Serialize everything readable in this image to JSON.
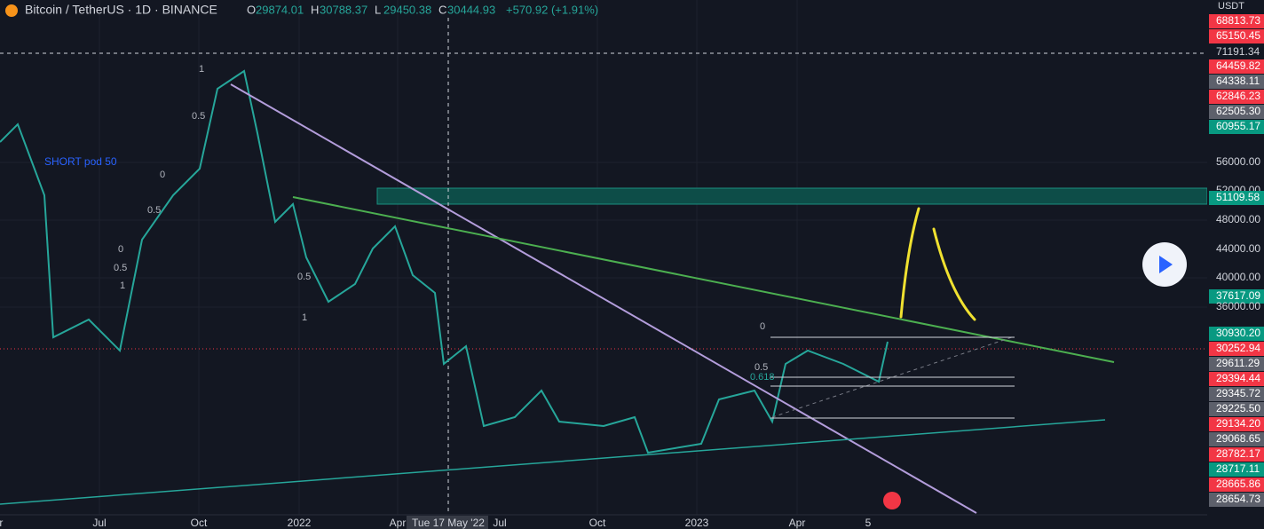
{
  "header": {
    "symbol": "Bitcoin / TetherUS · 1D · BINANCE",
    "ohlc": [
      {
        "key": "O",
        "value": "29874.01"
      },
      {
        "key": "H",
        "value": "30788.37"
      },
      {
        "key": "L",
        "value": "29450.38"
      },
      {
        "key": "C",
        "value": "30444.93"
      }
    ],
    "change": "+570.92 (+1.91%)"
  },
  "price_axis": {
    "unit": "USDT",
    "labels": [
      {
        "text": "68813.73",
        "color": "#f23645"
      },
      {
        "text": "65150.45",
        "color": "#f23645"
      },
      {
        "text": "71191.34",
        "color": "#131722"
      },
      {
        "text": "64459.82",
        "color": "#f23645"
      },
      {
        "text": "64338.11",
        "color": "#5d606b"
      },
      {
        "text": "62846.23",
        "color": "#f23645"
      },
      {
        "text": "62505.30",
        "color": "#5d606b"
      },
      {
        "text": "60955.17",
        "color": "#089981"
      },
      {
        "text": "56000.00"
      },
      {
        "text": "52000.00"
      },
      {
        "text": "51109.58",
        "color": "#089981"
      },
      {
        "text": "48000.00"
      },
      {
        "text": "44000.00"
      },
      {
        "text": "40000.00"
      },
      {
        "text": "37617.09",
        "color": "#089981"
      },
      {
        "text": "36000.00"
      },
      {
        "text": "30930.20",
        "color": "#089981"
      },
      {
        "text": "30252.94",
        "color": "#f23645"
      },
      {
        "text": "29611.29",
        "color": "#5d606b"
      },
      {
        "text": "29394.44",
        "color": "#f23645"
      },
      {
        "text": "29345.72",
        "color": "#5d606b"
      },
      {
        "text": "29225.50",
        "color": "#5d606b"
      },
      {
        "text": "29134.20",
        "color": "#f23645"
      },
      {
        "text": "29068.65",
        "color": "#5d606b"
      },
      {
        "text": "28782.17",
        "color": "#f23645"
      },
      {
        "text": "28717.11",
        "color": "#089981"
      },
      {
        "text": "28665.86",
        "color": "#f23645"
      },
      {
        "text": "28654.73",
        "color": "#5d606b"
      }
    ]
  },
  "time_axis": {
    "labels": [
      "Apr",
      "Jul",
      "Oct",
      "2022",
      "Apr",
      "Tue 17 May '22",
      "Jul",
      "Oct",
      "2023",
      "Apr",
      "5"
    ]
  },
  "annotations": {
    "note": "SHORT pod 50",
    "fib": [
      "1",
      "0.5",
      "0",
      "0.5",
      "0",
      "0.5",
      "1",
      "0.5",
      "1",
      "0",
      "0.5",
      "0.618"
    ]
  }
}
